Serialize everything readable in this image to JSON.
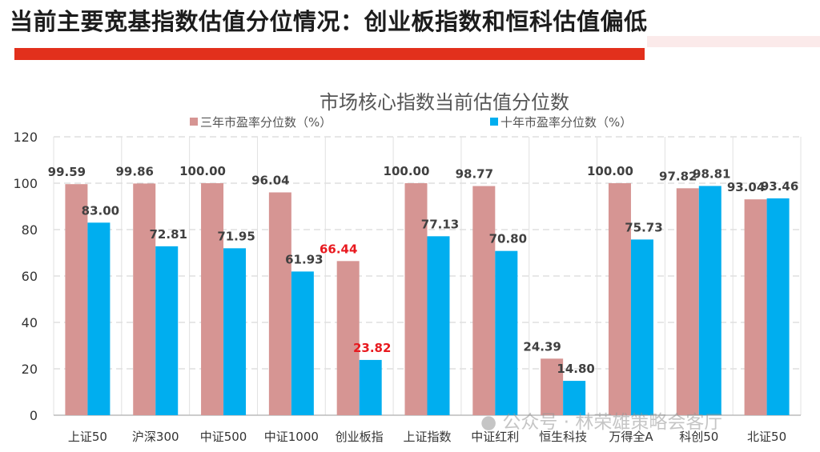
{
  "slide": {
    "title": "当前主要宽基指数估值分位情况：创业板指数和恒科估值偏低",
    "watermark": "公众号 · 林荣雄策略会客厅",
    "watermark_icon": "wechat-icon"
  },
  "colors": {
    "three_year": "#d69593",
    "ten_year": "#00aeef",
    "highlight_label": "#e8191f",
    "accent_bar": "#e2301c"
  },
  "chart_data": {
    "type": "bar",
    "title": "市场核心指数当前估值分位数",
    "categories": [
      "上证50",
      "沪深300",
      "中证500",
      "中证1000",
      "创业板指",
      "上证指数",
      "中证红利",
      "恒生科技",
      "万得全A",
      "科创50",
      "北证50"
    ],
    "series": [
      {
        "name": "三年市盈率分位数（%）",
        "values": [
          99.59,
          99.86,
          100.0,
          96.04,
          66.44,
          100.0,
          98.77,
          24.39,
          100.0,
          97.82,
          93.04
        ]
      },
      {
        "name": "十年市盈率分位数（%）",
        "values": [
          83.0,
          72.81,
          71.95,
          61.93,
          23.82,
          77.13,
          70.8,
          14.8,
          75.73,
          98.81,
          93.46
        ]
      }
    ],
    "data_labels": {
      "three_year": [
        "99.59",
        "99.86",
        "100.00",
        "96.04",
        "66.44",
        "100.00",
        "98.77",
        "24.39",
        "100.00",
        "97.82",
        "93.04"
      ],
      "ten_year": [
        "83.00",
        "72.81",
        "71.95",
        "61.93",
        "23.82",
        "77.13",
        "70.80",
        "14.80",
        "75.73",
        "98.81",
        "93.46"
      ]
    },
    "highlighted_category": "创业板指",
    "yticks": [
      "0",
      "20",
      "40",
      "60",
      "80",
      "100",
      "120"
    ],
    "ylim": [
      0,
      120
    ],
    "grid": "horizontal dashed, vertical category separators",
    "legend": "top",
    "xlabel": "",
    "ylabel": ""
  }
}
